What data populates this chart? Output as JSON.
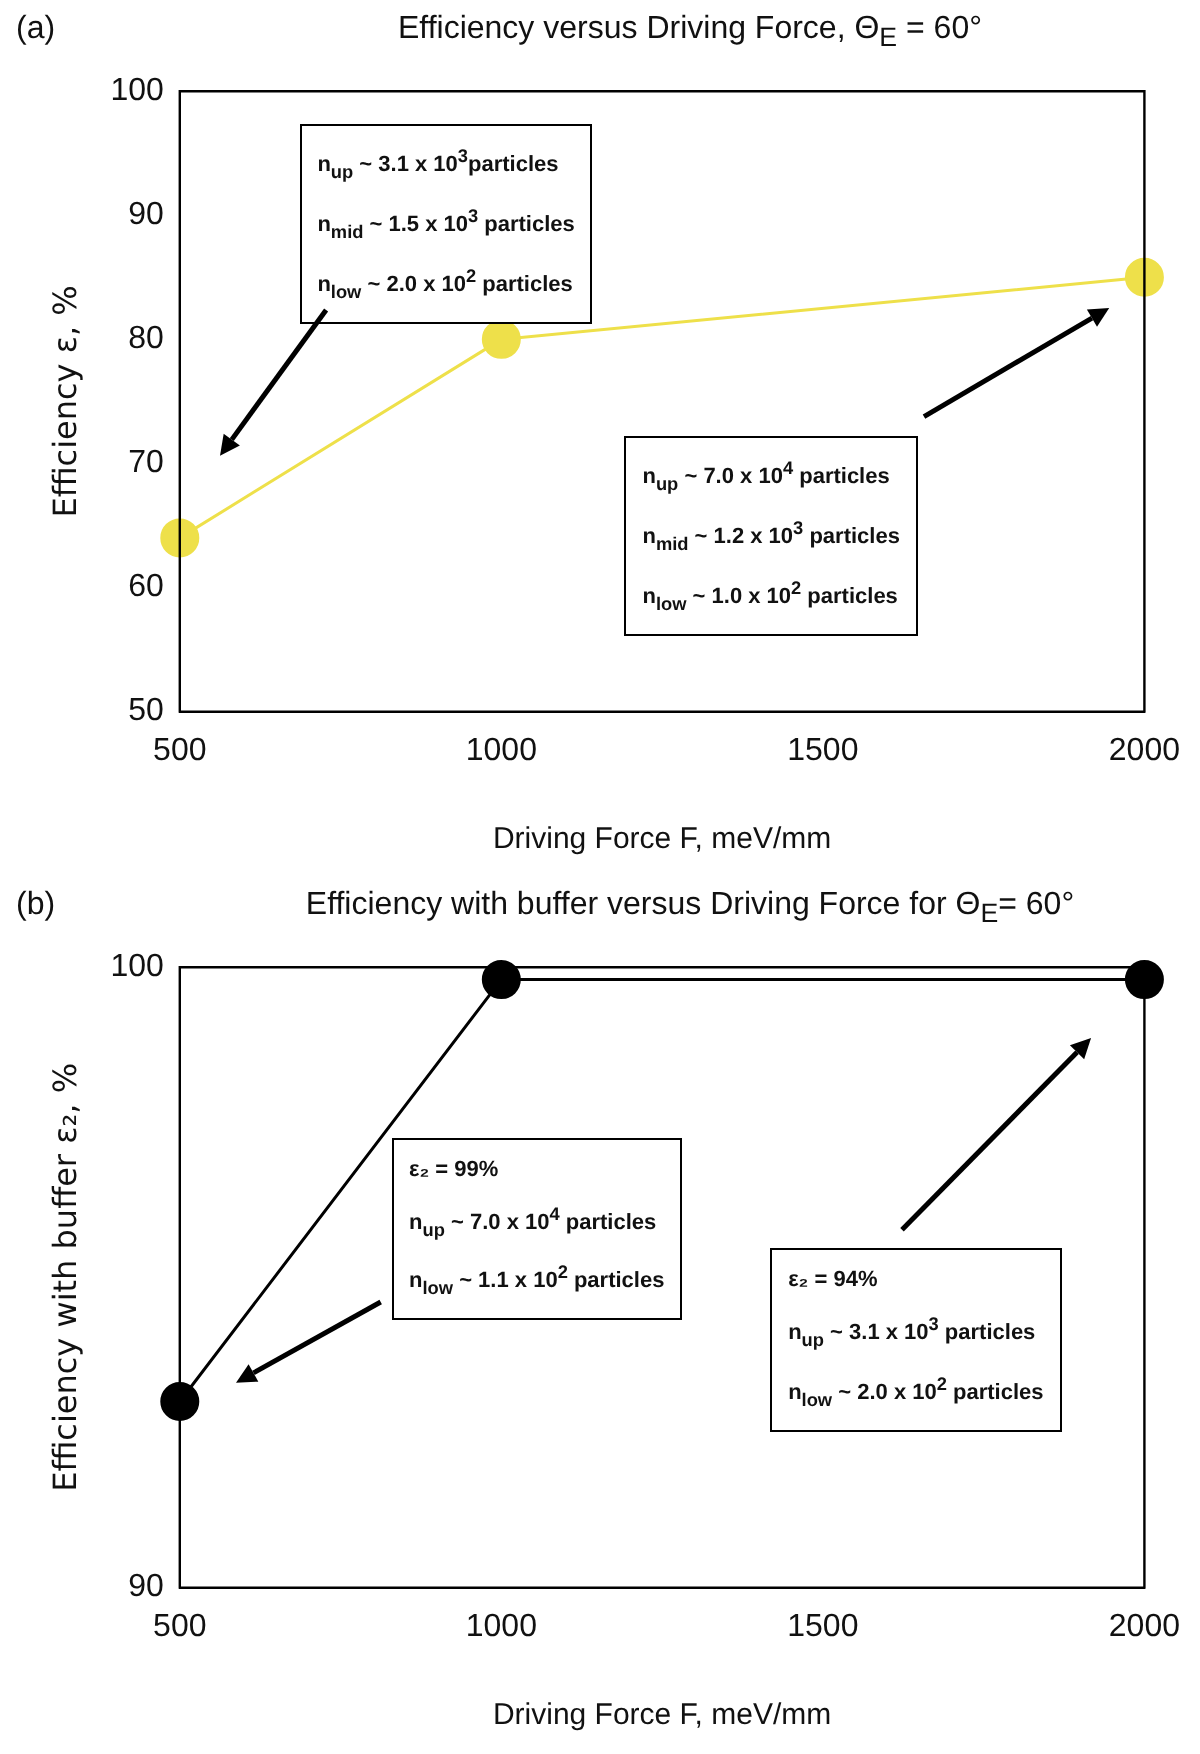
{
  "chart_data": [
    {
      "type": "line",
      "title": "Efficiency versus Driving Force, Θ$_{E}$ = 60°",
      "xlabel": "Driving Force F, meV/mm",
      "ylabel": "Efficiency ε, %",
      "x": [
        500,
        1000,
        2000
      ],
      "series": [
        {
          "color": "#eee04a",
          "values": [
            64,
            80,
            85
          ]
        }
      ],
      "xlim": [
        500,
        2000
      ],
      "xticks": [
        500,
        1000,
        1500,
        2000
      ],
      "ylim": [
        50,
        100
      ],
      "yticks": [
        50,
        60,
        70,
        80,
        90,
        100
      ],
      "marker": "circle",
      "grid": false,
      "legend": false,
      "annotations": [
        "(a)",
        "n$_{up}$ ~ 3.1 x 10$^{3}$particles\nn$_{mid}$ ~ 1.5 x 10$^{3}$ particles\nn$_{low}$ ~ 2.0 x 10$^{2}$ particles",
        "n$_{up}$ ~ 7.0 x 10$^{4}$ particles\nn$_{mid}$ ~ 1.2 x 10$^{3}$ particles\nn$_{low}$ ~ 1.0 x 10$^{2}$ particles"
      ]
    },
    {
      "type": "line",
      "title": "Efficiency with buffer versus Driving Force for Θ$_{E}$= 60°",
      "xlabel": "Driving Force F, meV/mm",
      "ylabel": "Efficiency with buffer ε₂, %",
      "x": [
        500,
        1000,
        2000
      ],
      "series": [
        {
          "color": "#000000",
          "values": [
            93,
            99.8,
            99.8
          ]
        }
      ],
      "xlim": [
        500,
        2000
      ],
      "xticks": [
        500,
        1000,
        1500,
        2000
      ],
      "ylim": [
        90,
        100
      ],
      "yticks": [
        90,
        100
      ],
      "marker": "circle",
      "grid": false,
      "legend": false,
      "annotations": [
        "(b)",
        "ε₂ = 99%\nn$_{up}$ ~ 7.0 x 10$^{4}$ particles\nn$_{low}$ ~ 1.1 x 10$^{2}$ particles",
        "ε₂ = 94%\nn$_{up}$ ~ 3.1 x 10$^{3}$ particles\nn$_{low}$ ~ 2.0 x 10$^{2}$ particles"
      ]
    }
  ]
}
